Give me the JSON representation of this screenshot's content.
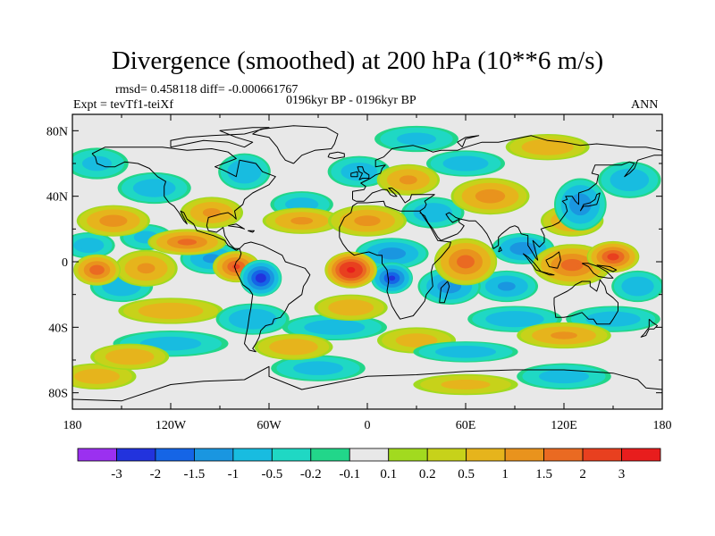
{
  "chart_data": {
    "type": "heatmap",
    "title": "Divergence (smoothed) at 200 hPa (10**6 m/s)",
    "stats": "rmsd= 0.458118 diff= -0.000661767",
    "experiment": "Expt = tevTf1-teiXf",
    "period": "0196kyr BP - 0196kyr BP",
    "season": "ANN",
    "xticks": [
      "180",
      "120W",
      "60W",
      "0",
      "60E",
      "120E",
      "180"
    ],
    "xtick_lon": [
      -180,
      -120,
      -60,
      0,
      60,
      120,
      180
    ],
    "yticks": [
      "80N",
      "40N",
      "0",
      "40S",
      "80S"
    ],
    "ytick_lat": [
      80,
      40,
      0,
      -40,
      -80
    ],
    "xlim": [
      -180,
      180
    ],
    "ylim": [
      -90,
      90
    ],
    "colorbar": {
      "labels": [
        "-3",
        "-2",
        "-1.5",
        "-1",
        "-0.5",
        "-0.2",
        "-0.1",
        "0.1",
        "0.2",
        "0.5",
        "1",
        "1.5",
        "2",
        "3"
      ],
      "colors": [
        "#9b30f0",
        "#2233dd",
        "#1565e6",
        "#1a96e0",
        "#18bce0",
        "#1fd8c4",
        "#22d68a",
        "#e8e8e8",
        "#a2da1f",
        "#c7d21a",
        "#e6b41c",
        "#e9931d",
        "#ea6a22",
        "#e8401f",
        "#e81d1d"
      ]
    },
    "anomalies": [
      {
        "lon": -10,
        "lat": -5,
        "value": 3.2,
        "size_lon": 10,
        "size_lat": 7
      },
      {
        "lon": -80,
        "lat": -3,
        "value": 2.0,
        "size_lon": 9,
        "size_lat": 6
      },
      {
        "lon": -165,
        "lat": -5,
        "value": 1.8,
        "size_lon": 9,
        "size_lat": 6
      },
      {
        "lon": -135,
        "lat": -4,
        "value": 1.0,
        "size_lon": 12,
        "size_lat": 7
      },
      {
        "lon": -110,
        "lat": 12,
        "value": 1.6,
        "size_lon": 15,
        "size_lat": 5
      },
      {
        "lon": -155,
        "lat": 25,
        "value": 1.2,
        "size_lon": 14,
        "size_lat": 6
      },
      {
        "lon": -95,
        "lat": 30,
        "value": 1.0,
        "size_lon": 12,
        "size_lat": 6
      },
      {
        "lon": -40,
        "lat": 25,
        "value": 1.0,
        "size_lon": 15,
        "size_lat": 5
      },
      {
        "lon": 0,
        "lat": 25,
        "value": 1.1,
        "size_lon": 15,
        "size_lat": 6
      },
      {
        "lon": 25,
        "lat": 50,
        "value": 1.0,
        "size_lon": 12,
        "size_lat": 6
      },
      {
        "lon": 60,
        "lat": 0,
        "value": 1.7,
        "size_lon": 12,
        "size_lat": 9
      },
      {
        "lon": 75,
        "lat": 40,
        "value": 1.2,
        "size_lon": 15,
        "size_lat": 7
      },
      {
        "lon": 110,
        "lat": 70,
        "value": 0.8,
        "size_lon": 16,
        "size_lat": 5
      },
      {
        "lon": 125,
        "lat": -2,
        "value": 1.7,
        "size_lon": 15,
        "size_lat": 8
      },
      {
        "lon": 150,
        "lat": 3,
        "value": 2.2,
        "size_lon": 10,
        "size_lat": 6
      },
      {
        "lon": 125,
        "lat": 25,
        "value": 1.0,
        "size_lon": 12,
        "size_lat": 6
      },
      {
        "lon": -120,
        "lat": -30,
        "value": 0.8,
        "size_lon": 20,
        "size_lat": 5
      },
      {
        "lon": -10,
        "lat": -28,
        "value": 0.8,
        "size_lon": 14,
        "size_lat": 5
      },
      {
        "lon": 120,
        "lat": -45,
        "value": 1.0,
        "size_lon": 18,
        "size_lat": 5
      },
      {
        "lon": -45,
        "lat": -52,
        "value": 0.8,
        "size_lon": 15,
        "size_lat": 5
      },
      {
        "lon": -145,
        "lat": -58,
        "value": 0.8,
        "size_lon": 15,
        "size_lat": 5
      },
      {
        "lon": 30,
        "lat": -48,
        "value": 0.6,
        "size_lon": 15,
        "size_lat": 5
      },
      {
        "lon": -165,
        "lat": -70,
        "value": 0.7,
        "size_lon": 15,
        "size_lat": 5
      },
      {
        "lon": 60,
        "lat": -75,
        "value": 0.5,
        "size_lon": 20,
        "size_lat": 4
      },
      {
        "lon": -65,
        "lat": -10,
        "value": -2.3,
        "size_lon": 8,
        "size_lat": 7
      },
      {
        "lon": 15,
        "lat": -10,
        "value": -2.0,
        "size_lon": 8,
        "size_lat": 6
      },
      {
        "lon": 15,
        "lat": 5,
        "value": -1.2,
        "size_lon": 14,
        "size_lat": 6
      },
      {
        "lon": -95,
        "lat": 2,
        "value": -1.0,
        "size_lon": 12,
        "size_lat": 6
      },
      {
        "lon": -150,
        "lat": -15,
        "value": -0.8,
        "size_lon": 12,
        "size_lat": 6
      },
      {
        "lon": -170,
        "lat": 10,
        "value": -0.7,
        "size_lon": 10,
        "size_lat": 5
      },
      {
        "lon": -135,
        "lat": 15,
        "value": -0.5,
        "size_lon": 10,
        "size_lat": 5
      },
      {
        "lon": 50,
        "lat": -15,
        "value": -1.2,
        "size_lon": 12,
        "size_lat": 7
      },
      {
        "lon": 85,
        "lat": -15,
        "value": -1.0,
        "size_lon": 12,
        "size_lat": 6
      },
      {
        "lon": 95,
        "lat": 8,
        "value": -1.3,
        "size_lon": 12,
        "size_lat": 6
      },
      {
        "lon": 165,
        "lat": -15,
        "value": -0.8,
        "size_lon": 10,
        "size_lat": 6
      },
      {
        "lon": -70,
        "lat": -35,
        "value": -0.9,
        "size_lon": 14,
        "size_lat": 6
      },
      {
        "lon": 130,
        "lat": 35,
        "value": -1.3,
        "size_lon": 10,
        "size_lat": 10
      },
      {
        "lon": -75,
        "lat": 55,
        "value": -0.9,
        "size_lon": 10,
        "size_lat": 7
      },
      {
        "lon": -40,
        "lat": 35,
        "value": -0.6,
        "size_lon": 12,
        "size_lat": 5
      },
      {
        "lon": 40,
        "lat": 30,
        "value": -0.8,
        "size_lon": 12,
        "size_lat": 6
      },
      {
        "lon": -130,
        "lat": 45,
        "value": -0.7,
        "size_lon": 14,
        "size_lat": 6
      },
      {
        "lon": 160,
        "lat": 50,
        "value": -0.8,
        "size_lon": 12,
        "size_lat": 7
      },
      {
        "lon": -5,
        "lat": 55,
        "value": -0.7,
        "size_lon": 12,
        "size_lat": 6
      },
      {
        "lon": 60,
        "lat": 60,
        "value": -0.7,
        "size_lon": 15,
        "size_lat": 5
      },
      {
        "lon": -20,
        "lat": -40,
        "value": -0.7,
        "size_lon": 20,
        "size_lat": 5
      },
      {
        "lon": 90,
        "lat": -35,
        "value": -0.8,
        "size_lon": 18,
        "size_lat": 5
      },
      {
        "lon": 150,
        "lat": -35,
        "value": -0.7,
        "size_lon": 18,
        "size_lat": 5
      },
      {
        "lon": -120,
        "lat": -50,
        "value": -0.6,
        "size_lon": 22,
        "size_lat": 5
      },
      {
        "lon": 60,
        "lat": -55,
        "value": -0.7,
        "size_lon": 20,
        "size_lat": 4
      },
      {
        "lon": -30,
        "lat": -65,
        "value": -0.6,
        "size_lon": 18,
        "size_lat": 5
      },
      {
        "lon": 120,
        "lat": -70,
        "value": -0.6,
        "size_lon": 18,
        "size_lat": 5
      },
      {
        "lon": -165,
        "lat": 60,
        "value": -0.5,
        "size_lon": 12,
        "size_lat": 6
      },
      {
        "lon": 30,
        "lat": 75,
        "value": -0.5,
        "size_lon": 16,
        "size_lat": 5
      }
    ]
  }
}
